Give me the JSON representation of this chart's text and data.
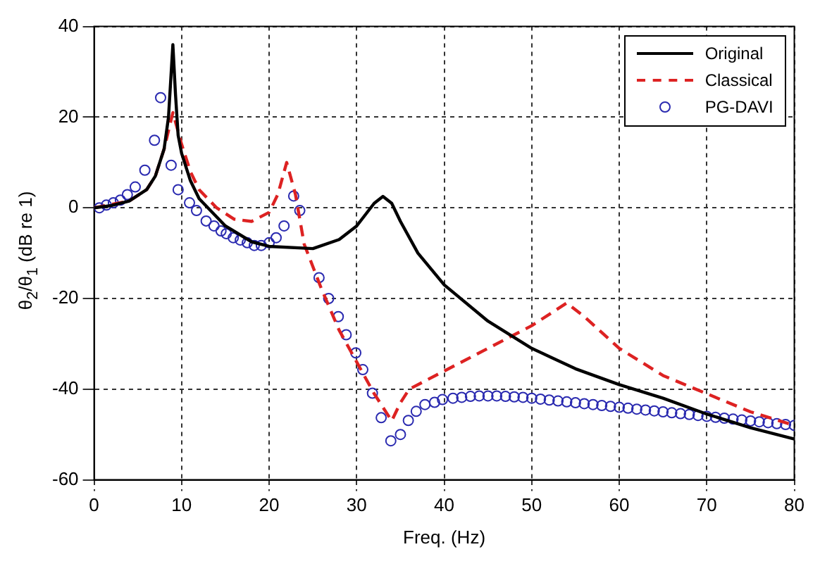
{
  "chart_data": {
    "type": "line",
    "xlabel": "Freq. (Hz)",
    "ylabel": "θ$_{2}$/θ$_{1}$ (dB re 1)",
    "xlim": [
      0,
      80
    ],
    "xticks": [
      0,
      10,
      20,
      30,
      40,
      50,
      60,
      70,
      80
    ],
    "ylim": [
      -60,
      40
    ],
    "yticks": [
      -60,
      -40,
      -20,
      0,
      20,
      40
    ],
    "grid": true,
    "legend": "top right",
    "series": [
      {
        "name": "Original",
        "type": "line",
        "color": "#000000",
        "line_style": "solid",
        "marker": "none",
        "x": [
          0,
          2,
          4,
          6,
          7,
          8,
          8.5,
          9,
          9.3,
          9.6,
          10,
          11,
          12,
          15,
          18,
          20,
          25,
          28,
          30,
          32,
          33,
          34,
          35,
          37,
          40,
          45,
          50,
          55,
          60,
          65,
          70,
          75,
          80
        ],
        "values": [
          0,
          0.5,
          1.5,
          4,
          7,
          13,
          20,
          36,
          25,
          16,
          12,
          6,
          2,
          -4,
          -7.5,
          -8.5,
          -9,
          -7,
          -4,
          1,
          2.5,
          1,
          -3,
          -10,
          -17,
          -25,
          -31,
          -35.5,
          -39,
          -42,
          -45.5,
          -48.5,
          -51
        ]
      },
      {
        "name": "Classical",
        "type": "line",
        "color": "#dd2222",
        "line_style": "dashed",
        "marker": "none",
        "x": [
          0,
          4,
          6,
          7,
          8,
          9,
          10,
          11,
          12,
          14,
          16,
          18,
          20,
          21,
          22,
          23,
          24,
          26,
          28,
          30,
          32,
          34,
          35,
          36,
          40,
          45,
          50,
          54,
          56,
          60,
          65,
          70,
          75,
          80
        ],
        "values": [
          0,
          1.5,
          4,
          7,
          13,
          21,
          14,
          8,
          4,
          0,
          -2.5,
          -3,
          -1,
          3,
          10,
          3,
          -8,
          -18,
          -27,
          -34,
          -41,
          -47,
          -43,
          -40,
          -36,
          -31,
          -26,
          -21,
          -24,
          -31,
          -37,
          -41,
          -45,
          -48
        ]
      },
      {
        "name": "PG-DAVI",
        "type": "scatter",
        "color": "#2a2ab0",
        "marker": "circle",
        "x": [
          0.6,
          1.4,
          2.2,
          3,
          3.8,
          4.7,
          5.8,
          6.9,
          7.6,
          8.8,
          9.6,
          10.9,
          11.7,
          12.8,
          13.7,
          14.5,
          15.1,
          15.9,
          16.7,
          17.5,
          18.3,
          19.1,
          20,
          20.8,
          21.7,
          22.8,
          23.5,
          25.7,
          26.8,
          27.9,
          28.8,
          29.9,
          30.7,
          31.8,
          32.8,
          33.9,
          35,
          35.9,
          36.8,
          37.8,
          38.9,
          39.8,
          41,
          42,
          43,
          44,
          45,
          46,
          47,
          48,
          49,
          50,
          51,
          52,
          53,
          54,
          55,
          56,
          57,
          58,
          59,
          60,
          61,
          62,
          63,
          64,
          65,
          66,
          67,
          68,
          69,
          70,
          71,
          72,
          73,
          74,
          75,
          76,
          77,
          78,
          79,
          80
        ],
        "values": [
          0,
          0.6,
          1.1,
          1.7,
          2.9,
          4.6,
          8.3,
          14.9,
          24.3,
          9.4,
          4,
          1.1,
          -0.6,
          -2.9,
          -4,
          -5.1,
          -5.7,
          -6.6,
          -7.1,
          -7.7,
          -8.3,
          -8.3,
          -7.7,
          -6.6,
          -4,
          2.6,
          -0.6,
          -15.4,
          -20,
          -24,
          -28,
          -32,
          -35.7,
          -40.9,
          -46.3,
          -51.4,
          -50,
          -46.9,
          -44.9,
          -43.4,
          -42.9,
          -42.3,
          -42,
          -41.8,
          -41.6,
          -41.5,
          -41.5,
          -41.5,
          -41.6,
          -41.7,
          -41.8,
          -42,
          -42.2,
          -42.4,
          -42.6,
          -42.8,
          -43,
          -43.2,
          -43.4,
          -43.6,
          -43.8,
          -44,
          -44.2,
          -44.4,
          -44.6,
          -44.8,
          -45,
          -45.2,
          -45.4,
          -45.6,
          -45.8,
          -46,
          -46.2,
          -46.4,
          -46.6,
          -46.8,
          -47,
          -47.2,
          -47.4,
          -47.6,
          -47.8,
          -48
        ]
      }
    ]
  }
}
